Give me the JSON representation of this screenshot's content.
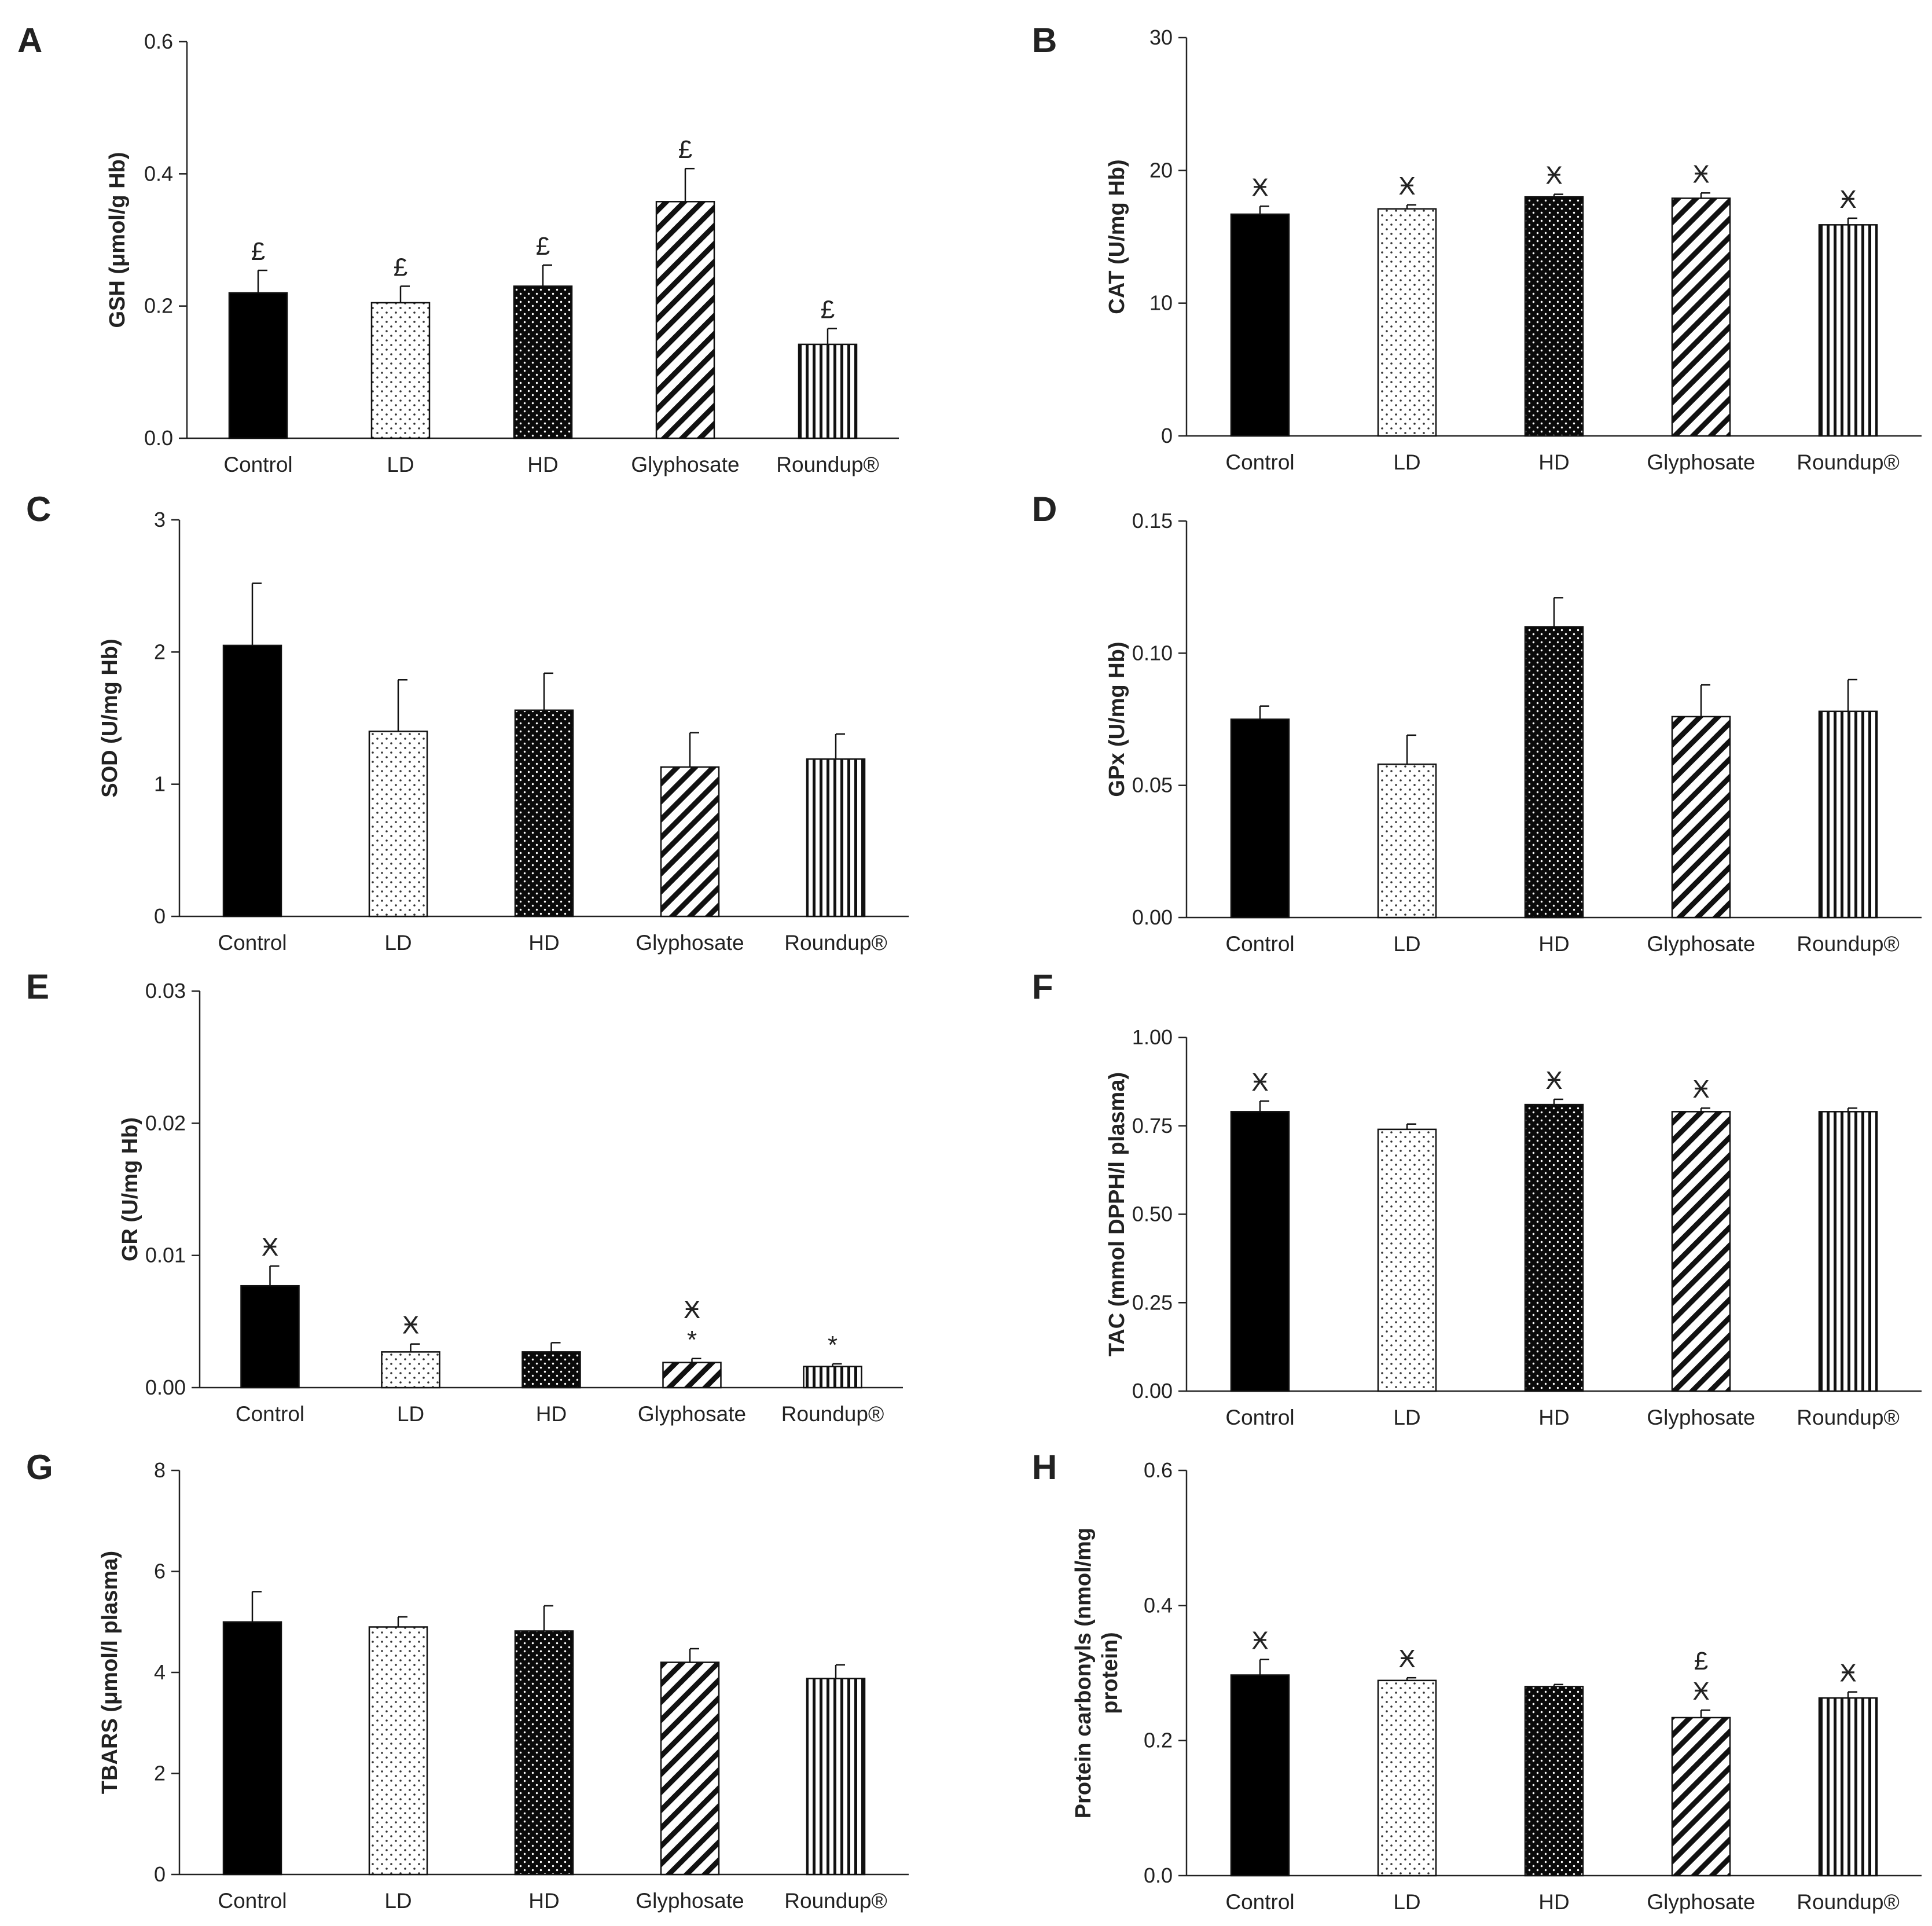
{
  "colors": {
    "axis": "#222222",
    "bar_edge": "#111111",
    "background": "#ffffff"
  },
  "chart_data": [
    {
      "panel": "A",
      "type": "bar",
      "categories": [
        "Control",
        "LD",
        "HD",
        "Glyphosate",
        "Roundup®"
      ],
      "patterns": [
        "solid",
        "sparse-dots",
        "dense-dots",
        "diagonal-hatch",
        "vertical-lines"
      ],
      "values": [
        0.22,
        0.205,
        0.23,
        0.358,
        0.142
      ],
      "errors": [
        0.034,
        0.025,
        0.032,
        0.05,
        0.024
      ],
      "annotations": [
        [
          "£"
        ],
        [
          "£"
        ],
        [
          "£"
        ],
        [
          "£"
        ],
        [
          "£"
        ]
      ],
      "ylabel": "GSH (μmol/g Hb)",
      "xlabel": "",
      "ylim": [
        0,
        0.6
      ],
      "yticks": [
        "0.0",
        "0.2",
        "0.4",
        "0.6"
      ]
    },
    {
      "panel": "B",
      "type": "bar",
      "categories": [
        "Control",
        "LD",
        "HD",
        "Glyphosate",
        "Roundup®"
      ],
      "patterns": [
        "solid",
        "sparse-dots",
        "dense-dots",
        "diagonal-hatch",
        "vertical-lines"
      ],
      "values": [
        16.7,
        17.1,
        18.0,
        17.9,
        15.9
      ],
      "errors": [
        0.6,
        0.3,
        0.2,
        0.4,
        0.5
      ],
      "annotations": [
        [
          "Ӿ"
        ],
        [
          "Ӿ"
        ],
        [
          "Ӿ"
        ],
        [
          "Ӿ"
        ],
        [
          "Ӿ"
        ]
      ],
      "ylabel": "CAT (U/mg Hb)",
      "xlabel": "",
      "ylim": [
        0,
        30
      ],
      "yticks": [
        "0",
        "10",
        "20",
        "30"
      ]
    },
    {
      "panel": "C",
      "type": "bar",
      "categories": [
        "Control",
        "LD",
        "HD",
        "Glyphosate",
        "Roundup®"
      ],
      "patterns": [
        "solid",
        "sparse-dots",
        "dense-dots",
        "diagonal-hatch",
        "vertical-lines"
      ],
      "values": [
        2.05,
        1.4,
        1.56,
        1.13,
        1.19
      ],
      "errors": [
        0.47,
        0.39,
        0.28,
        0.26,
        0.19
      ],
      "annotations": [
        [],
        [],
        [],
        [],
        []
      ],
      "ylabel": "SOD (U/mg Hb)",
      "xlabel": "",
      "ylim": [
        0,
        3
      ],
      "yticks": [
        "0",
        "1",
        "2",
        "3"
      ]
    },
    {
      "panel": "D",
      "type": "bar",
      "categories": [
        "Control",
        "LD",
        "HD",
        "Glyphosate",
        "Roundup®"
      ],
      "patterns": [
        "solid",
        "sparse-dots",
        "dense-dots",
        "diagonal-hatch",
        "vertical-lines"
      ],
      "values": [
        0.075,
        0.058,
        0.11,
        0.076,
        0.078
      ],
      "errors": [
        0.005,
        0.011,
        0.011,
        0.012,
        0.012
      ],
      "annotations": [
        [],
        [],
        [],
        [],
        []
      ],
      "ylabel": "GPx (U/mg Hb)",
      "xlabel": "",
      "ylim": [
        0,
        0.15
      ],
      "yticks": [
        "0.00",
        "0.05",
        "0.10",
        "0.15"
      ]
    },
    {
      "panel": "E",
      "type": "bar",
      "categories": [
        "Control",
        "LD",
        "HD",
        "Glyphosate",
        "Roundup®"
      ],
      "patterns": [
        "solid",
        "sparse-dots",
        "dense-dots",
        "diagonal-hatch",
        "vertical-lines"
      ],
      "values": [
        0.0077,
        0.0027,
        0.0027,
        0.0019,
        0.0016
      ],
      "errors": [
        0.0015,
        0.0006,
        0.0007,
        0.0003,
        0.0002
      ],
      "annotations": [
        [
          "Ӿ"
        ],
        [
          "Ӿ"
        ],
        [],
        [
          "*",
          "Ӿ"
        ],
        [
          "*"
        ]
      ],
      "ylabel": "GR (U/mg Hb)",
      "xlabel": "",
      "ylim": [
        0,
        0.03
      ],
      "yticks": [
        "0.00",
        "0.01",
        "0.02",
        "0.03"
      ]
    },
    {
      "panel": "F",
      "type": "bar",
      "categories": [
        "Control",
        "LD",
        "HD",
        "Glyphosate",
        "Roundup®"
      ],
      "patterns": [
        "solid",
        "sparse-dots",
        "dense-dots",
        "diagonal-hatch",
        "vertical-lines"
      ],
      "values": [
        0.79,
        0.74,
        0.81,
        0.79,
        0.79
      ],
      "errors": [
        0.03,
        0.015,
        0.015,
        0.01,
        0.01
      ],
      "annotations": [
        [
          "Ӿ"
        ],
        [],
        [
          "Ӿ"
        ],
        [
          "Ӿ"
        ],
        []
      ],
      "ylabel": "TAC (mmol DPPH/l plasma)",
      "xlabel": "",
      "ylim": [
        0,
        1
      ],
      "yticks": [
        "0.00",
        "0.25",
        "0.50",
        "0.75",
        "1.00"
      ]
    },
    {
      "panel": "G",
      "type": "bar",
      "categories": [
        "Control",
        "LD",
        "HD",
        "Glyphosate",
        "Roundup®"
      ],
      "patterns": [
        "solid",
        "sparse-dots",
        "dense-dots",
        "diagonal-hatch",
        "vertical-lines"
      ],
      "values": [
        5.0,
        4.9,
        4.82,
        4.2,
        3.88
      ],
      "errors": [
        0.6,
        0.2,
        0.5,
        0.27,
        0.27
      ],
      "annotations": [
        [],
        [],
        [],
        [],
        []
      ],
      "ylabel": "TBARS (μmol/l plasma)",
      "xlabel": "",
      "ylim": [
        0,
        8
      ],
      "yticks": [
        "0",
        "2",
        "4",
        "6",
        "8"
      ]
    },
    {
      "panel": "H",
      "type": "bar",
      "categories": [
        "Control",
        "LD",
        "HD",
        "Glyphosate",
        "Roundup®"
      ],
      "patterns": [
        "solid",
        "sparse-dots",
        "dense-dots",
        "diagonal-hatch",
        "vertical-lines"
      ],
      "values": [
        0.297,
        0.289,
        0.28,
        0.234,
        0.263
      ],
      "errors": [
        0.023,
        0.004,
        0.003,
        0.011,
        0.009
      ],
      "annotations": [
        [
          "Ӿ"
        ],
        [
          "Ӿ"
        ],
        [],
        [
          "Ӿ",
          "£"
        ],
        [
          "Ӿ"
        ]
      ],
      "ylabel": "Protein carbonyls (nmol/mg protein)",
      "ylabel_lines": [
        "Protein carbonyls (nmol/mg",
        "protein)"
      ],
      "xlabel": "",
      "ylim": [
        0,
        0.6
      ],
      "yticks": [
        "0.0",
        "0.2",
        "0.4",
        "0.6"
      ]
    }
  ]
}
